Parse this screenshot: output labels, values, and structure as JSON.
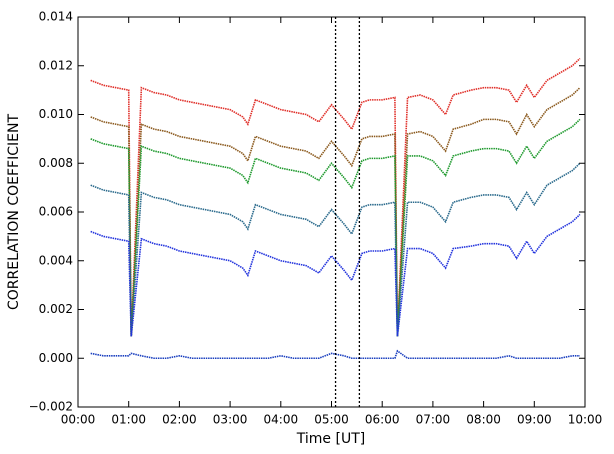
{
  "chart_data": {
    "type": "line",
    "x_label": "Time [UT]",
    "y_label": "CORRELATION COEFFICIENT",
    "x": [
      0.25,
      0.5,
      0.75,
      1.0,
      1.05,
      1.25,
      1.5,
      1.75,
      2.0,
      2.25,
      2.5,
      2.75,
      3.0,
      3.25,
      3.35,
      3.5,
      3.75,
      4.0,
      4.25,
      4.5,
      4.75,
      5.0,
      5.25,
      5.4,
      5.6,
      5.75,
      6.0,
      6.25,
      6.3,
      6.5,
      6.75,
      7.0,
      7.25,
      7.4,
      7.75,
      8.0,
      8.25,
      8.5,
      8.65,
      8.85,
      9.0,
      9.25,
      9.5,
      9.75,
      9.9
    ],
    "series": [
      {
        "color": "#e0302a",
        "values": [
          0.0114,
          0.0112,
          0.0111,
          0.011,
          0.0009,
          0.0111,
          0.0109,
          0.0108,
          0.0106,
          0.0105,
          0.0104,
          0.0103,
          0.0102,
          0.0099,
          0.0096,
          0.0106,
          0.0104,
          0.0102,
          0.0101,
          0.01,
          0.0097,
          0.0104,
          0.0098,
          0.0094,
          0.0105,
          0.0106,
          0.0106,
          0.0107,
          0.0009,
          0.0107,
          0.0108,
          0.0106,
          0.01,
          0.0108,
          0.011,
          0.0111,
          0.0111,
          0.011,
          0.0105,
          0.0112,
          0.0107,
          0.0114,
          0.0117,
          0.012,
          0.0123
        ]
      },
      {
        "color": "#8b5a1e",
        "values": [
          0.0099,
          0.0097,
          0.0096,
          0.0095,
          0.0009,
          0.0096,
          0.0094,
          0.0093,
          0.0091,
          0.009,
          0.0089,
          0.0088,
          0.0087,
          0.0084,
          0.0081,
          0.0091,
          0.0089,
          0.0087,
          0.0086,
          0.0085,
          0.0082,
          0.0089,
          0.0083,
          0.0079,
          0.009,
          0.0091,
          0.0091,
          0.0092,
          0.0009,
          0.0092,
          0.0093,
          0.0091,
          0.0085,
          0.0094,
          0.0096,
          0.0098,
          0.0098,
          0.0097,
          0.0092,
          0.01,
          0.0095,
          0.0102,
          0.0105,
          0.0108,
          0.0111
        ]
      },
      {
        "color": "#1f9a2e",
        "values": [
          0.009,
          0.0088,
          0.0087,
          0.0086,
          0.0009,
          0.0087,
          0.0085,
          0.0084,
          0.0082,
          0.0081,
          0.008,
          0.0079,
          0.0078,
          0.0075,
          0.0072,
          0.0082,
          0.008,
          0.0078,
          0.0077,
          0.0076,
          0.0073,
          0.008,
          0.0074,
          0.007,
          0.0081,
          0.0082,
          0.0082,
          0.0083,
          0.0009,
          0.0083,
          0.0083,
          0.0081,
          0.0075,
          0.0083,
          0.0085,
          0.0086,
          0.0086,
          0.0085,
          0.008,
          0.0087,
          0.0082,
          0.0089,
          0.0092,
          0.0095,
          0.0098
        ]
      },
      {
        "color": "#2a6a8c",
        "values": [
          0.0071,
          0.0069,
          0.0068,
          0.0067,
          0.0009,
          0.0068,
          0.0066,
          0.0065,
          0.0063,
          0.0062,
          0.0061,
          0.006,
          0.0059,
          0.0056,
          0.0053,
          0.0063,
          0.0061,
          0.0059,
          0.0058,
          0.0057,
          0.0054,
          0.0061,
          0.0055,
          0.0051,
          0.0062,
          0.0063,
          0.0063,
          0.0064,
          0.0009,
          0.0064,
          0.0064,
          0.0062,
          0.0056,
          0.0064,
          0.0066,
          0.0067,
          0.0067,
          0.0066,
          0.0061,
          0.0068,
          0.0063,
          0.0071,
          0.0074,
          0.0077,
          0.008
        ]
      },
      {
        "color": "#2233dd",
        "values": [
          0.0052,
          0.005,
          0.0049,
          0.0048,
          0.0009,
          0.0049,
          0.0047,
          0.0046,
          0.0044,
          0.0043,
          0.0042,
          0.0041,
          0.004,
          0.0037,
          0.0034,
          0.0044,
          0.0042,
          0.004,
          0.0039,
          0.0038,
          0.0035,
          0.0042,
          0.0036,
          0.0032,
          0.0043,
          0.0044,
          0.0044,
          0.0045,
          0.0009,
          0.0045,
          0.0045,
          0.0043,
          0.0037,
          0.0045,
          0.0046,
          0.0047,
          0.0047,
          0.0046,
          0.0041,
          0.0048,
          0.0043,
          0.005,
          0.0053,
          0.0056,
          0.0059
        ]
      },
      {
        "color": "#1a3fbf",
        "values": [
          0.0002,
          0.0001,
          0.0001,
          0.0001,
          0.0002,
          0.0001,
          0.0,
          0.0,
          0.0001,
          0.0,
          0.0,
          0.0,
          0.0,
          0.0,
          0.0,
          0.0,
          0.0,
          0.0001,
          0.0,
          0.0,
          0.0,
          0.0002,
          0.0001,
          0.0,
          0.0,
          0.0,
          0.0,
          0.0,
          0.0003,
          0.0,
          0.0,
          0.0,
          0.0,
          0.0,
          0.0,
          0.0,
          0.0,
          0.0001,
          0.0,
          0.0,
          0.0,
          0.0,
          0.0,
          0.0001,
          0.0001
        ]
      }
    ],
    "vlines": [
      5.08,
      5.55
    ],
    "xlim": [
      0,
      10
    ],
    "xticks": [
      {
        "value": 0,
        "label": "00:00"
      },
      {
        "value": 1,
        "label": "01:00"
      },
      {
        "value": 2,
        "label": "02:00"
      },
      {
        "value": 3,
        "label": "03:00"
      },
      {
        "value": 4,
        "label": "04:00"
      },
      {
        "value": 5,
        "label": "05:00"
      },
      {
        "value": 6,
        "label": "06:00"
      },
      {
        "value": 7,
        "label": "07:00"
      },
      {
        "value": 8,
        "label": "08:00"
      },
      {
        "value": 9,
        "label": "09:00"
      },
      {
        "value": 10,
        "label": "10:00"
      }
    ],
    "ylim": [
      -0.002,
      0.014
    ],
    "yticks": [
      {
        "value": -0.002,
        "label": "−0.002"
      },
      {
        "value": 0,
        "label": "0.000"
      },
      {
        "value": 0.002,
        "label": "0.002"
      },
      {
        "value": 0.004,
        "label": "0.004"
      },
      {
        "value": 0.006,
        "label": "0.006"
      },
      {
        "value": 0.008,
        "label": "0.008"
      },
      {
        "value": 0.01,
        "label": "0.010"
      },
      {
        "value": 0.012,
        "label": "0.012"
      },
      {
        "value": 0.014,
        "label": "0.014"
      }
    ]
  }
}
